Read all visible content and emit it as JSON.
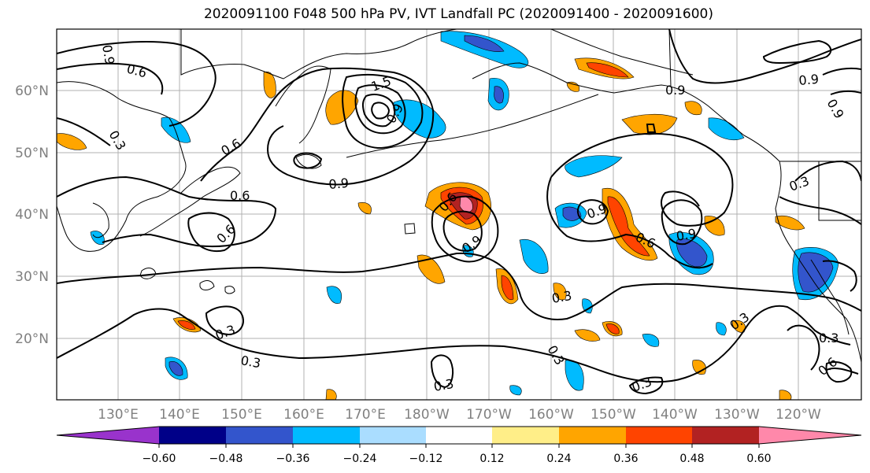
{
  "title": "2020091100 F048 500 hPa PV, IVT Landfall PC (2020091400 - 2020091600)",
  "lat_labels": [
    "60°N",
    "50°N",
    "40°N",
    "30°N",
    "20°N"
  ],
  "lon_labels": [
    "130°E",
    "140°E",
    "150°E",
    "160°E",
    "170°E",
    "180°W",
    "170°W",
    "160°W",
    "150°W",
    "140°W",
    "130°W",
    "120°W"
  ],
  "contour_labels": [
    {
      "id": "c1",
      "text": "0.9"
    },
    {
      "id": "c2",
      "text": "0.6"
    },
    {
      "id": "c3",
      "text": "0.3"
    },
    {
      "id": "c4",
      "text": "0.6"
    },
    {
      "id": "c5",
      "text": "0.6"
    },
    {
      "id": "c6",
      "text": "0.6"
    },
    {
      "id": "c7",
      "text": "0.9"
    },
    {
      "id": "c8",
      "text": "1.5"
    },
    {
      "id": "c9",
      "text": "0.9"
    },
    {
      "id": "c10",
      "text": "0.6"
    },
    {
      "id": "c11",
      "text": "0.9"
    },
    {
      "id": "c12",
      "text": "0.9"
    },
    {
      "id": "c13",
      "text": "0.6"
    },
    {
      "id": "c14",
      "text": "0.9"
    },
    {
      "id": "c15",
      "text": "0.3"
    },
    {
      "id": "c16",
      "text": "0.3"
    },
    {
      "id": "c17",
      "text": "0.3"
    },
    {
      "id": "c18",
      "text": "0.3"
    },
    {
      "id": "c19",
      "text": "0.3"
    },
    {
      "id": "c20",
      "text": "0.3"
    },
    {
      "id": "c21",
      "text": "0.3"
    },
    {
      "id": "c22",
      "text": "0.3"
    },
    {
      "id": "c23",
      "text": "0.3"
    },
    {
      "id": "c24",
      "text": "0.6"
    },
    {
      "id": "c25",
      "text": "0.9"
    },
    {
      "id": "c26",
      "text": "0.9"
    },
    {
      "id": "c27",
      "text": "0.9"
    }
  ],
  "colorbar": {
    "colors": [
      "#9933cc",
      "#000088",
      "#3355cc",
      "#00bbff",
      "#aaddff",
      "#ffffff",
      "#ffee88",
      "#ffa500",
      "#ff4400",
      "#b22222",
      "#ff88aa"
    ],
    "tick_labels": [
      "−0.60",
      "−0.48",
      "−0.36",
      "−0.24",
      "−0.12",
      "0.12",
      "0.24",
      "0.36",
      "0.48",
      "0.60"
    ]
  }
}
